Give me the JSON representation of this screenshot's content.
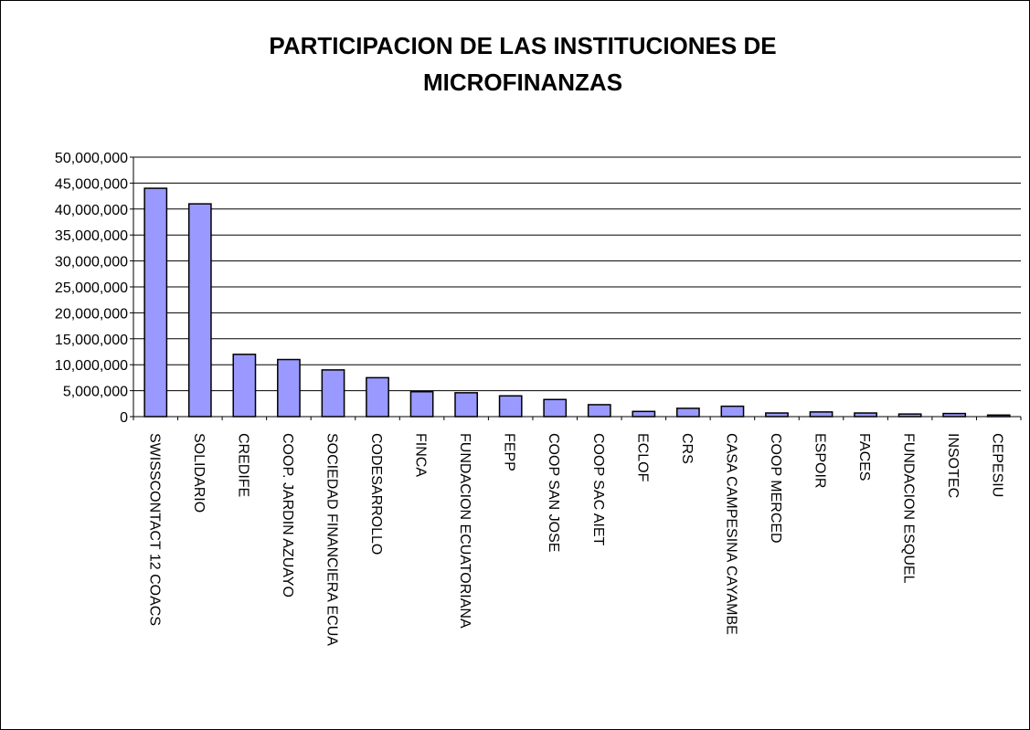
{
  "chart_data": {
    "type": "bar",
    "title": "PARTICIPACION DE LAS INSTITUCIONES DE MICROFINANZAS",
    "categories": [
      "SWISSCONTACT 12 COACS",
      "SOLIDARIO",
      "CREDIFE",
      "COOP. JARDIN AZUAYO",
      "SOCIEDAD FINANCIERA ECUA",
      "CODESARROLLO",
      "FINCA",
      "FUNDACION ECUATORIANA",
      "FEPP",
      "COOP SAN JOSE",
      "COOP SAC AIET",
      "ECLOF",
      "CRS",
      "CASA CAMPESINA CAYAMBE",
      "COOP  MERCED",
      "ESPOIR",
      "FACES",
      "FUNDACION ESQUEL",
      "INSOTEC",
      "CEPESIU"
    ],
    "values": [
      44000000,
      41000000,
      12000000,
      11000000,
      9000000,
      7500000,
      4800000,
      4600000,
      4000000,
      3300000,
      2300000,
      1000000,
      1600000,
      2000000,
      700000,
      900000,
      700000,
      500000,
      600000,
      300000
    ],
    "color": "#9999ff",
    "ylim": [
      0,
      50000000
    ],
    "yticks": [
      0,
      {
        "value": 5000000,
        "label": "5,000,000"
      },
      {
        "value": 10000000,
        "label": "10,000,000"
      },
      {
        "value": 15000000,
        "label": "15,000,000"
      },
      {
        "value": 20000000,
        "label": "20,000,000"
      },
      {
        "value": 25000000,
        "label": "25,000,000"
      },
      {
        "value": 30000000,
        "label": "30,000,000"
      },
      {
        "value": 35000000,
        "label": "35,000,000"
      },
      {
        "value": 40000000,
        "label": "40,000,000"
      },
      {
        "value": 45000000,
        "label": "45,000,000"
      },
      {
        "value": 50000000,
        "label": "50,000,000"
      }
    ],
    "grid": true
  }
}
